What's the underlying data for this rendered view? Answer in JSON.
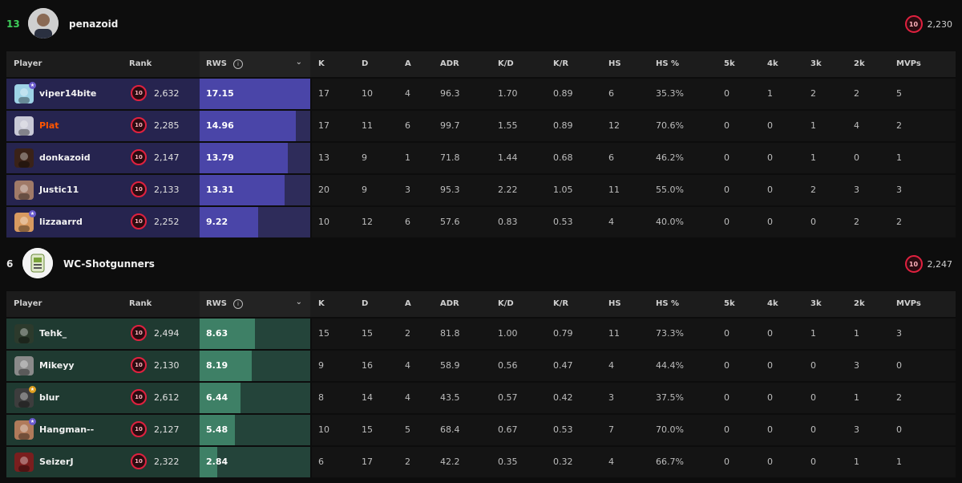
{
  "columns": {
    "player": "Player",
    "rank": "Rank",
    "rws": "RWS",
    "k": "K",
    "d": "D",
    "a": "A",
    "adr": "ADR",
    "kd": "K/D",
    "kr": "K/R",
    "hs": "HS",
    "hs_pct": "HS %",
    "k5": "5k",
    "k4": "4k",
    "k3": "3k",
    "k2": "2k",
    "mvps": "MVPs"
  },
  "teams": [
    {
      "score": "13",
      "score_color": "#3ecf5a",
      "name": "penazoid",
      "level": "10",
      "elo": "2,230",
      "theme": "purple",
      "players": [
        {
          "name": "viper14bite",
          "level": "10",
          "elo": "2,632",
          "rws": "17.15",
          "rws_fraction": 1.0,
          "k": "17",
          "d": "10",
          "a": "4",
          "adr": "96.3",
          "kd": "1.70",
          "kr": "0.89",
          "hs": "6",
          "hs_pct": "35.3%",
          "k5": "0",
          "k4": "1",
          "k3": "2",
          "k2": "2",
          "mvps": "5",
          "star": true,
          "star_color": "#6a5acd",
          "avatar_color": "#9ed3e6"
        },
        {
          "name": "Plat",
          "level": "10",
          "elo": "2,285",
          "rws": "14.96",
          "rws_fraction": 0.87,
          "k": "17",
          "d": "11",
          "a": "6",
          "adr": "99.7",
          "kd": "1.55",
          "kr": "0.89",
          "hs": "12",
          "hs_pct": "70.6%",
          "k5": "0",
          "k4": "0",
          "k3": "1",
          "k2": "4",
          "mvps": "2",
          "star": false,
          "highlight": true,
          "avatar_color": "#c9c9d6"
        },
        {
          "name": "donkazoid",
          "level": "10",
          "elo": "2,147",
          "rws": "13.79",
          "rws_fraction": 0.8,
          "k": "13",
          "d": "9",
          "a": "1",
          "adr": "71.8",
          "kd": "1.44",
          "kr": "0.68",
          "hs": "6",
          "hs_pct": "46.2%",
          "k5": "0",
          "k4": "0",
          "k3": "1",
          "k2": "0",
          "mvps": "1",
          "star": false,
          "avatar_color": "#3a2218"
        },
        {
          "name": "Justic11",
          "level": "10",
          "elo": "2,133",
          "rws": "13.31",
          "rws_fraction": 0.77,
          "k": "20",
          "d": "9",
          "a": "3",
          "adr": "95.3",
          "kd": "2.22",
          "kr": "1.05",
          "hs": "11",
          "hs_pct": "55.0%",
          "k5": "0",
          "k4": "0",
          "k3": "2",
          "k2": "3",
          "mvps": "3",
          "star": false,
          "avatar_color": "#a07a68"
        },
        {
          "name": "lizzaarrd",
          "level": "10",
          "elo": "2,252",
          "rws": "9.22",
          "rws_fraction": 0.53,
          "k": "10",
          "d": "12",
          "a": "6",
          "adr": "57.6",
          "kd": "0.83",
          "kr": "0.53",
          "hs": "4",
          "hs_pct": "40.0%",
          "k5": "0",
          "k4": "0",
          "k3": "0",
          "k2": "2",
          "mvps": "2",
          "star": true,
          "star_color": "#6a5acd",
          "avatar_color": "#d89a60"
        }
      ]
    },
    {
      "score": "6",
      "score_color": "#e8e8e8",
      "name": "WC-Shotgunners",
      "level": "10",
      "elo": "2,247",
      "theme": "green",
      "players": [
        {
          "name": "Tehk_",
          "level": "10",
          "elo": "2,494",
          "rws": "8.63",
          "rws_fraction": 0.5,
          "k": "15",
          "d": "15",
          "a": "2",
          "adr": "81.8",
          "kd": "1.00",
          "kr": "0.79",
          "hs": "11",
          "hs_pct": "73.3%",
          "k5": "0",
          "k4": "0",
          "k3": "1",
          "k2": "1",
          "mvps": "3",
          "star": false,
          "avatar_color": "#2c3a2c"
        },
        {
          "name": "Mikeyy",
          "level": "10",
          "elo": "2,130",
          "rws": "8.19",
          "rws_fraction": 0.47,
          "k": "9",
          "d": "16",
          "a": "4",
          "adr": "58.9",
          "kd": "0.56",
          "kr": "0.47",
          "hs": "4",
          "hs_pct": "44.4%",
          "k5": "0",
          "k4": "0",
          "k3": "0",
          "k2": "3",
          "mvps": "0",
          "star": false,
          "avatar_color": "#8a8a8a"
        },
        {
          "name": "blur",
          "level": "10",
          "elo": "2,612",
          "rws": "6.44",
          "rws_fraction": 0.37,
          "k": "8",
          "d": "14",
          "a": "4",
          "adr": "43.5",
          "kd": "0.57",
          "kr": "0.42",
          "hs": "3",
          "hs_pct": "37.5%",
          "k5": "0",
          "k4": "0",
          "k3": "0",
          "k2": "1",
          "mvps": "2",
          "star": true,
          "star_color": "#e0a020",
          "avatar_color": "#3d3d3d"
        },
        {
          "name": "Hangman--",
          "level": "10",
          "elo": "2,127",
          "rws": "5.48",
          "rws_fraction": 0.32,
          "k": "10",
          "d": "15",
          "a": "5",
          "adr": "68.4",
          "kd": "0.67",
          "kr": "0.53",
          "hs": "7",
          "hs_pct": "70.0%",
          "k5": "0",
          "k4": "0",
          "k3": "0",
          "k2": "3",
          "mvps": "0",
          "star": true,
          "star_color": "#6a5acd",
          "avatar_color": "#b07a5a"
        },
        {
          "name": "SeizerJ",
          "level": "10",
          "elo": "2,322",
          "rws": "2.84",
          "rws_fraction": 0.16,
          "k": "6",
          "d": "17",
          "a": "2",
          "adr": "42.2",
          "kd": "0.35",
          "kr": "0.32",
          "hs": "4",
          "hs_pct": "66.7%",
          "k5": "0",
          "k4": "0",
          "k3": "0",
          "k2": "1",
          "mvps": "1",
          "star": false,
          "avatar_color": "#7a1e1e"
        }
      ]
    }
  ]
}
